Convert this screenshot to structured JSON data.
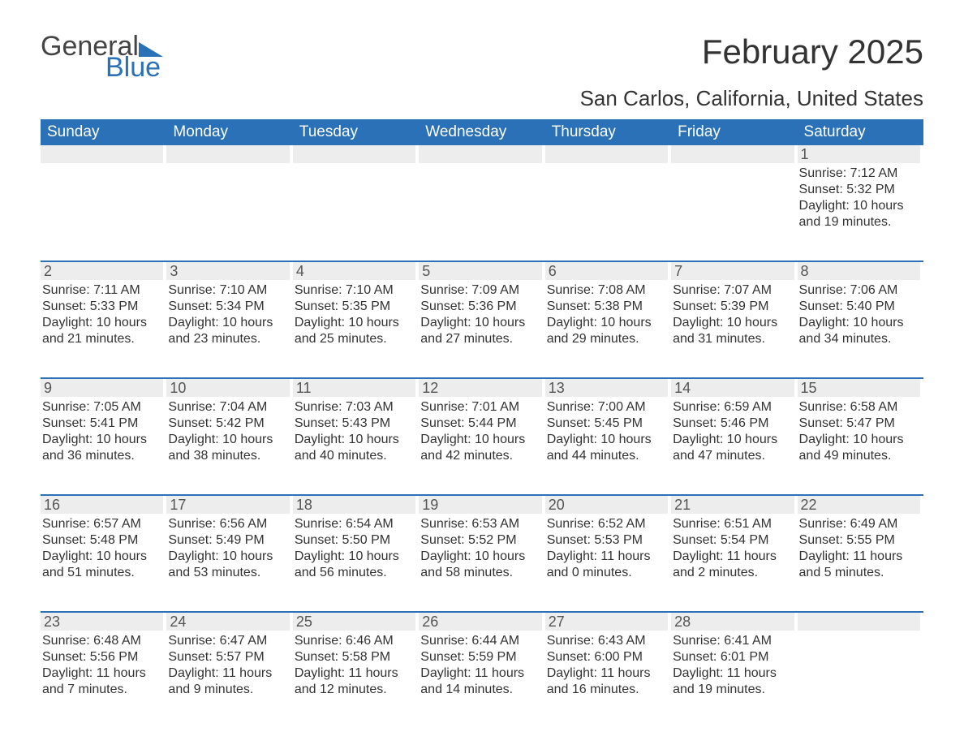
{
  "logo": {
    "line1": "General",
    "line2": "Blue"
  },
  "title": "February 2025",
  "location": "San Carlos, California, United States",
  "colors": {
    "brand": "#2a71b8",
    "daynum_bg": "#ededed",
    "text": "#333333",
    "muted": "#555555",
    "background": "#ffffff"
  },
  "typography": {
    "title_pt": 42,
    "location_pt": 26,
    "dow_pt": 19,
    "daynum_pt": 18,
    "body_pt": 16
  },
  "calendar": {
    "columns": 7,
    "day_names": [
      "Sunday",
      "Monday",
      "Tuesday",
      "Wednesday",
      "Thursday",
      "Friday",
      "Saturday"
    ],
    "weeks": [
      [
        {
          "day": "",
          "sunrise": "",
          "sunset": "",
          "daylight": ""
        },
        {
          "day": "",
          "sunrise": "",
          "sunset": "",
          "daylight": ""
        },
        {
          "day": "",
          "sunrise": "",
          "sunset": "",
          "daylight": ""
        },
        {
          "day": "",
          "sunrise": "",
          "sunset": "",
          "daylight": ""
        },
        {
          "day": "",
          "sunrise": "",
          "sunset": "",
          "daylight": ""
        },
        {
          "day": "",
          "sunrise": "",
          "sunset": "",
          "daylight": ""
        },
        {
          "day": "1",
          "sunrise": "Sunrise: 7:12 AM",
          "sunset": "Sunset: 5:32 PM",
          "daylight": "Daylight: 10 hours and 19 minutes."
        }
      ],
      [
        {
          "day": "2",
          "sunrise": "Sunrise: 7:11 AM",
          "sunset": "Sunset: 5:33 PM",
          "daylight": "Daylight: 10 hours and 21 minutes."
        },
        {
          "day": "3",
          "sunrise": "Sunrise: 7:10 AM",
          "sunset": "Sunset: 5:34 PM",
          "daylight": "Daylight: 10 hours and 23 minutes."
        },
        {
          "day": "4",
          "sunrise": "Sunrise: 7:10 AM",
          "sunset": "Sunset: 5:35 PM",
          "daylight": "Daylight: 10 hours and 25 minutes."
        },
        {
          "day": "5",
          "sunrise": "Sunrise: 7:09 AM",
          "sunset": "Sunset: 5:36 PM",
          "daylight": "Daylight: 10 hours and 27 minutes."
        },
        {
          "day": "6",
          "sunrise": "Sunrise: 7:08 AM",
          "sunset": "Sunset: 5:38 PM",
          "daylight": "Daylight: 10 hours and 29 minutes."
        },
        {
          "day": "7",
          "sunrise": "Sunrise: 7:07 AM",
          "sunset": "Sunset: 5:39 PM",
          "daylight": "Daylight: 10 hours and 31 minutes."
        },
        {
          "day": "8",
          "sunrise": "Sunrise: 7:06 AM",
          "sunset": "Sunset: 5:40 PM",
          "daylight": "Daylight: 10 hours and 34 minutes."
        }
      ],
      [
        {
          "day": "9",
          "sunrise": "Sunrise: 7:05 AM",
          "sunset": "Sunset: 5:41 PM",
          "daylight": "Daylight: 10 hours and 36 minutes."
        },
        {
          "day": "10",
          "sunrise": "Sunrise: 7:04 AM",
          "sunset": "Sunset: 5:42 PM",
          "daylight": "Daylight: 10 hours and 38 minutes."
        },
        {
          "day": "11",
          "sunrise": "Sunrise: 7:03 AM",
          "sunset": "Sunset: 5:43 PM",
          "daylight": "Daylight: 10 hours and 40 minutes."
        },
        {
          "day": "12",
          "sunrise": "Sunrise: 7:01 AM",
          "sunset": "Sunset: 5:44 PM",
          "daylight": "Daylight: 10 hours and 42 minutes."
        },
        {
          "day": "13",
          "sunrise": "Sunrise: 7:00 AM",
          "sunset": "Sunset: 5:45 PM",
          "daylight": "Daylight: 10 hours and 44 minutes."
        },
        {
          "day": "14",
          "sunrise": "Sunrise: 6:59 AM",
          "sunset": "Sunset: 5:46 PM",
          "daylight": "Daylight: 10 hours and 47 minutes."
        },
        {
          "day": "15",
          "sunrise": "Sunrise: 6:58 AM",
          "sunset": "Sunset: 5:47 PM",
          "daylight": "Daylight: 10 hours and 49 minutes."
        }
      ],
      [
        {
          "day": "16",
          "sunrise": "Sunrise: 6:57 AM",
          "sunset": "Sunset: 5:48 PM",
          "daylight": "Daylight: 10 hours and 51 minutes."
        },
        {
          "day": "17",
          "sunrise": "Sunrise: 6:56 AM",
          "sunset": "Sunset: 5:49 PM",
          "daylight": "Daylight: 10 hours and 53 minutes."
        },
        {
          "day": "18",
          "sunrise": "Sunrise: 6:54 AM",
          "sunset": "Sunset: 5:50 PM",
          "daylight": "Daylight: 10 hours and 56 minutes."
        },
        {
          "day": "19",
          "sunrise": "Sunrise: 6:53 AM",
          "sunset": "Sunset: 5:52 PM",
          "daylight": "Daylight: 10 hours and 58 minutes."
        },
        {
          "day": "20",
          "sunrise": "Sunrise: 6:52 AM",
          "sunset": "Sunset: 5:53 PM",
          "daylight": "Daylight: 11 hours and 0 minutes."
        },
        {
          "day": "21",
          "sunrise": "Sunrise: 6:51 AM",
          "sunset": "Sunset: 5:54 PM",
          "daylight": "Daylight: 11 hours and 2 minutes."
        },
        {
          "day": "22",
          "sunrise": "Sunrise: 6:49 AM",
          "sunset": "Sunset: 5:55 PM",
          "daylight": "Daylight: 11 hours and 5 minutes."
        }
      ],
      [
        {
          "day": "23",
          "sunrise": "Sunrise: 6:48 AM",
          "sunset": "Sunset: 5:56 PM",
          "daylight": "Daylight: 11 hours and 7 minutes."
        },
        {
          "day": "24",
          "sunrise": "Sunrise: 6:47 AM",
          "sunset": "Sunset: 5:57 PM",
          "daylight": "Daylight: 11 hours and 9 minutes."
        },
        {
          "day": "25",
          "sunrise": "Sunrise: 6:46 AM",
          "sunset": "Sunset: 5:58 PM",
          "daylight": "Daylight: 11 hours and 12 minutes."
        },
        {
          "day": "26",
          "sunrise": "Sunrise: 6:44 AM",
          "sunset": "Sunset: 5:59 PM",
          "daylight": "Daylight: 11 hours and 14 minutes."
        },
        {
          "day": "27",
          "sunrise": "Sunrise: 6:43 AM",
          "sunset": "Sunset: 6:00 PM",
          "daylight": "Daylight: 11 hours and 16 minutes."
        },
        {
          "day": "28",
          "sunrise": "Sunrise: 6:41 AM",
          "sunset": "Sunset: 6:01 PM",
          "daylight": "Daylight: 11 hours and 19 minutes."
        },
        {
          "day": "",
          "sunrise": "",
          "sunset": "",
          "daylight": ""
        }
      ]
    ]
  }
}
